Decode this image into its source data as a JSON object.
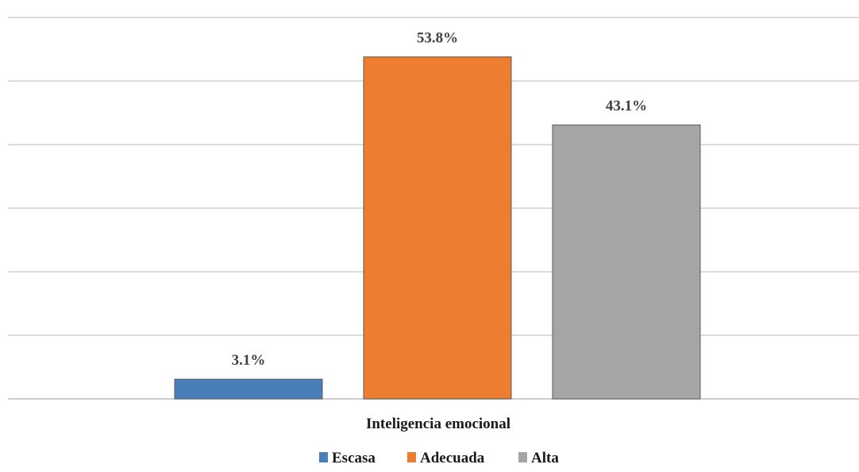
{
  "chart_data": {
    "type": "bar",
    "xlabel": "Inteligencia emocional",
    "ylim": [
      0,
      60
    ],
    "grid": true,
    "legend_position": "bottom",
    "data_label_format": "percent_1dp",
    "series": [
      {
        "name": "Escasa",
        "value": 3.1,
        "label": "3.1%",
        "color": "#4a7ebb"
      },
      {
        "name": "Adecuada",
        "value": 53.8,
        "label": "53.8%",
        "color": "#ed7d31"
      },
      {
        "name": "Alta",
        "value": 43.1,
        "label": "43.1%",
        "color": "#a5a5a5"
      }
    ]
  }
}
